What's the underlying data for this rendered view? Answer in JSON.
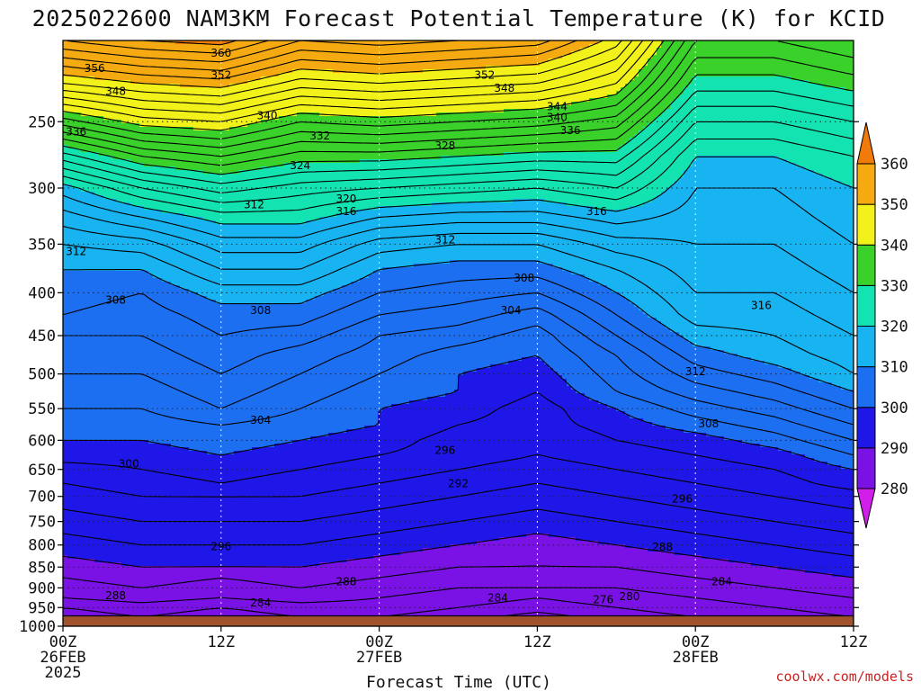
{
  "chart_data": {
    "type": "heatmap",
    "title": "2025022600 NAM3KM Forecast Potential Temperature (K) for KCID",
    "xlabel": "Forecast Time (UTC)",
    "ylabel": "",
    "y_scale": "log",
    "yrange": [
      1000,
      200
    ],
    "xrange": [
      0,
      60
    ],
    "y_ticks": [
      250,
      300,
      350,
      400,
      450,
      500,
      550,
      600,
      650,
      700,
      750,
      800,
      850,
      900,
      950,
      1000
    ],
    "x_ticks": [
      {
        "hour": 0,
        "lines": [
          "00Z",
          "26FEB",
          "2025"
        ]
      },
      {
        "hour": 12,
        "lines": [
          "12Z"
        ]
      },
      {
        "hour": 24,
        "lines": [
          "00Z",
          "27FEB"
        ]
      },
      {
        "hour": 36,
        "lines": [
          "12Z"
        ]
      },
      {
        "hour": 48,
        "lines": [
          "00Z",
          "28FEB"
        ]
      },
      {
        "hour": 60,
        "lines": [
          "12Z"
        ]
      }
    ],
    "grid": true,
    "colorbar": {
      "levels": [
        280,
        290,
        300,
        310,
        320,
        330,
        340,
        350,
        360
      ],
      "colors": [
        "#d11ee8",
        "#7a12e6",
        "#1f17e8",
        "#1c6ff0",
        "#18b4f2",
        "#12e3b0",
        "#3ad12a",
        "#f2f21a",
        "#f5aa12",
        "#f07a0a"
      ],
      "placement": "right"
    },
    "ground_color": "#a0522d",
    "surface_pressure_approx": 972,
    "profiles": {
      "pressures": [
        1000,
        975,
        950,
        925,
        900,
        875,
        850,
        825,
        800,
        775,
        750,
        725,
        700,
        675,
        650,
        625,
        600,
        575,
        550,
        525,
        500,
        475,
        450,
        425,
        400,
        375,
        350,
        325,
        300,
        275,
        250,
        225,
        200
      ],
      "hours": [
        0,
        6,
        12,
        18,
        24,
        30,
        36,
        42,
        48,
        54,
        60
      ],
      "theta": [
        [
          281,
          283,
          284,
          286,
          287,
          288,
          289,
          290,
          291,
          292,
          293,
          294,
          295,
          296,
          297,
          299,
          300,
          301,
          302,
          303,
          304,
          305,
          306,
          308,
          309,
          310,
          312,
          315,
          319,
          327,
          337,
          348,
          358
        ],
        [
          282,
          284,
          285,
          287,
          288,
          289,
          290,
          291,
          292,
          293,
          294,
          295,
          296,
          297,
          298,
          299,
          300,
          301,
          302,
          303,
          304,
          305,
          306,
          307,
          308,
          310,
          313,
          318,
          324,
          332,
          341,
          350,
          360
        ],
        [
          282,
          283,
          284,
          286,
          287,
          288,
          290,
          291,
          292,
          293,
          294,
          295,
          296,
          298,
          299,
          300,
          301,
          302,
          304,
          305,
          306,
          307,
          308,
          309,
          311,
          314,
          317,
          321,
          327,
          334,
          342,
          351,
          361
        ],
        [
          282,
          284,
          285,
          287,
          288,
          289,
          290,
          291,
          292,
          293,
          294,
          295,
          296,
          297,
          298,
          299,
          300,
          301,
          302,
          303,
          304,
          305,
          307,
          309,
          311,
          314,
          317,
          321,
          325,
          331,
          338,
          347,
          356
        ],
        [
          282,
          284,
          285,
          286,
          287,
          288,
          289,
          290,
          291,
          292,
          293,
          294,
          295,
          296,
          297,
          298,
          299,
          300,
          300,
          301,
          302,
          303,
          304,
          306,
          308,
          310,
          313,
          318,
          324,
          331,
          339,
          348,
          357
        ],
        [
          281,
          283,
          284,
          285,
          286,
          287,
          288,
          289,
          290,
          291,
          292,
          293,
          294,
          295,
          296,
          297,
          297,
          298,
          299,
          300,
          300,
          301,
          303,
          305,
          307,
          309,
          312,
          317,
          323,
          330,
          338,
          347,
          356
        ],
        [
          279,
          281,
          283,
          284,
          286,
          287,
          288,
          288,
          289,
          290,
          291,
          292,
          293,
          294,
          295,
          296,
          296,
          297,
          297,
          298,
          299,
          300,
          301,
          303,
          306,
          309,
          312,
          317,
          322,
          329,
          337,
          346,
          355
        ],
        [
          281,
          283,
          284,
          285,
          286,
          287,
          288,
          289,
          290,
          291,
          292,
          293,
          294,
          295,
          296,
          297,
          298,
          299,
          300,
          302,
          303,
          304,
          306,
          308,
          310,
          312,
          315,
          319,
          324,
          329,
          335,
          342,
          349
        ],
        [
          283,
          284,
          285,
          286,
          287,
          288,
          289,
          290,
          291,
          292,
          293,
          294,
          295,
          296,
          297,
          298,
          299,
          301,
          303,
          305,
          307,
          309,
          311,
          313,
          314,
          315,
          316,
          317,
          318,
          320,
          324,
          329,
          334
        ],
        [
          284,
          285,
          286,
          287,
          288,
          289,
          290,
          291,
          292,
          293,
          294,
          295,
          296,
          297,
          298,
          299,
          301,
          303,
          305,
          307,
          309,
          311,
          312,
          313,
          314,
          315,
          316,
          317,
          318,
          320,
          324,
          329,
          334
        ],
        [
          285,
          286,
          287,
          288,
          289,
          290,
          291,
          292,
          293,
          294,
          295,
          296,
          297,
          299,
          300,
          302,
          304,
          306,
          308,
          310,
          312,
          313,
          314,
          315,
          316,
          317,
          318,
          319,
          320,
          322,
          326,
          331,
          336
        ]
      ]
    },
    "contour_labels": [
      {
        "text": "360",
        "hour": 12.0,
        "p": 207
      },
      {
        "text": "356",
        "hour": 2.4,
        "p": 216
      },
      {
        "text": "352",
        "hour": 12.0,
        "p": 220
      },
      {
        "text": "348",
        "hour": 4.0,
        "p": 230
      },
      {
        "text": "340",
        "hour": 15.5,
        "p": 246
      },
      {
        "text": "336",
        "hour": 1.0,
        "p": 257
      },
      {
        "text": "332",
        "hour": 19.5,
        "p": 260
      },
      {
        "text": "324",
        "hour": 18.0,
        "p": 282
      },
      {
        "text": "320",
        "hour": 21.5,
        "p": 309
      },
      {
        "text": "316",
        "hour": 21.5,
        "p": 320
      },
      {
        "text": "312",
        "hour": 14.5,
        "p": 314
      },
      {
        "text": "312",
        "hour": 1.0,
        "p": 357
      },
      {
        "text": "308",
        "hour": 4.0,
        "p": 408
      },
      {
        "text": "308",
        "hour": 15.0,
        "p": 420
      },
      {
        "text": "304",
        "hour": 15.0,
        "p": 568
      },
      {
        "text": "300",
        "hour": 5.0,
        "p": 640
      },
      {
        "text": "296",
        "hour": 12.0,
        "p": 803
      },
      {
        "text": "288",
        "hour": 4.0,
        "p": 919
      },
      {
        "text": "284",
        "hour": 15.0,
        "p": 938
      },
      {
        "text": "288",
        "hour": 21.5,
        "p": 885
      },
      {
        "text": "296",
        "hour": 29.0,
        "p": 617
      },
      {
        "text": "292",
        "hour": 30.0,
        "p": 676
      },
      {
        "text": "284",
        "hour": 33.0,
        "p": 925
      },
      {
        "text": "276",
        "hour": 41.0,
        "p": 930
      },
      {
        "text": "280",
        "hour": 43.0,
        "p": 922
      },
      {
        "text": "352",
        "hour": 32.0,
        "p": 220
      },
      {
        "text": "348",
        "hour": 33.5,
        "p": 228
      },
      {
        "text": "344",
        "hour": 37.5,
        "p": 240
      },
      {
        "text": "340",
        "hour": 37.5,
        "p": 247
      },
      {
        "text": "336",
        "hour": 38.5,
        "p": 256
      },
      {
        "text": "328",
        "hour": 29.0,
        "p": 267
      },
      {
        "text": "316",
        "hour": 40.5,
        "p": 320
      },
      {
        "text": "312",
        "hour": 29.0,
        "p": 346
      },
      {
        "text": "308",
        "hour": 35.0,
        "p": 384
      },
      {
        "text": "304",
        "hour": 34.0,
        "p": 420
      },
      {
        "text": "316",
        "hour": 53.0,
        "p": 414
      },
      {
        "text": "312",
        "hour": 48.0,
        "p": 497
      },
      {
        "text": "308",
        "hour": 49.0,
        "p": 573
      },
      {
        "text": "296",
        "hour": 47.0,
        "p": 705
      },
      {
        "text": "288",
        "hour": 45.5,
        "p": 804
      },
      {
        "text": "284",
        "hour": 50.0,
        "p": 885
      }
    ]
  },
  "credit": "coolwx.com/models"
}
